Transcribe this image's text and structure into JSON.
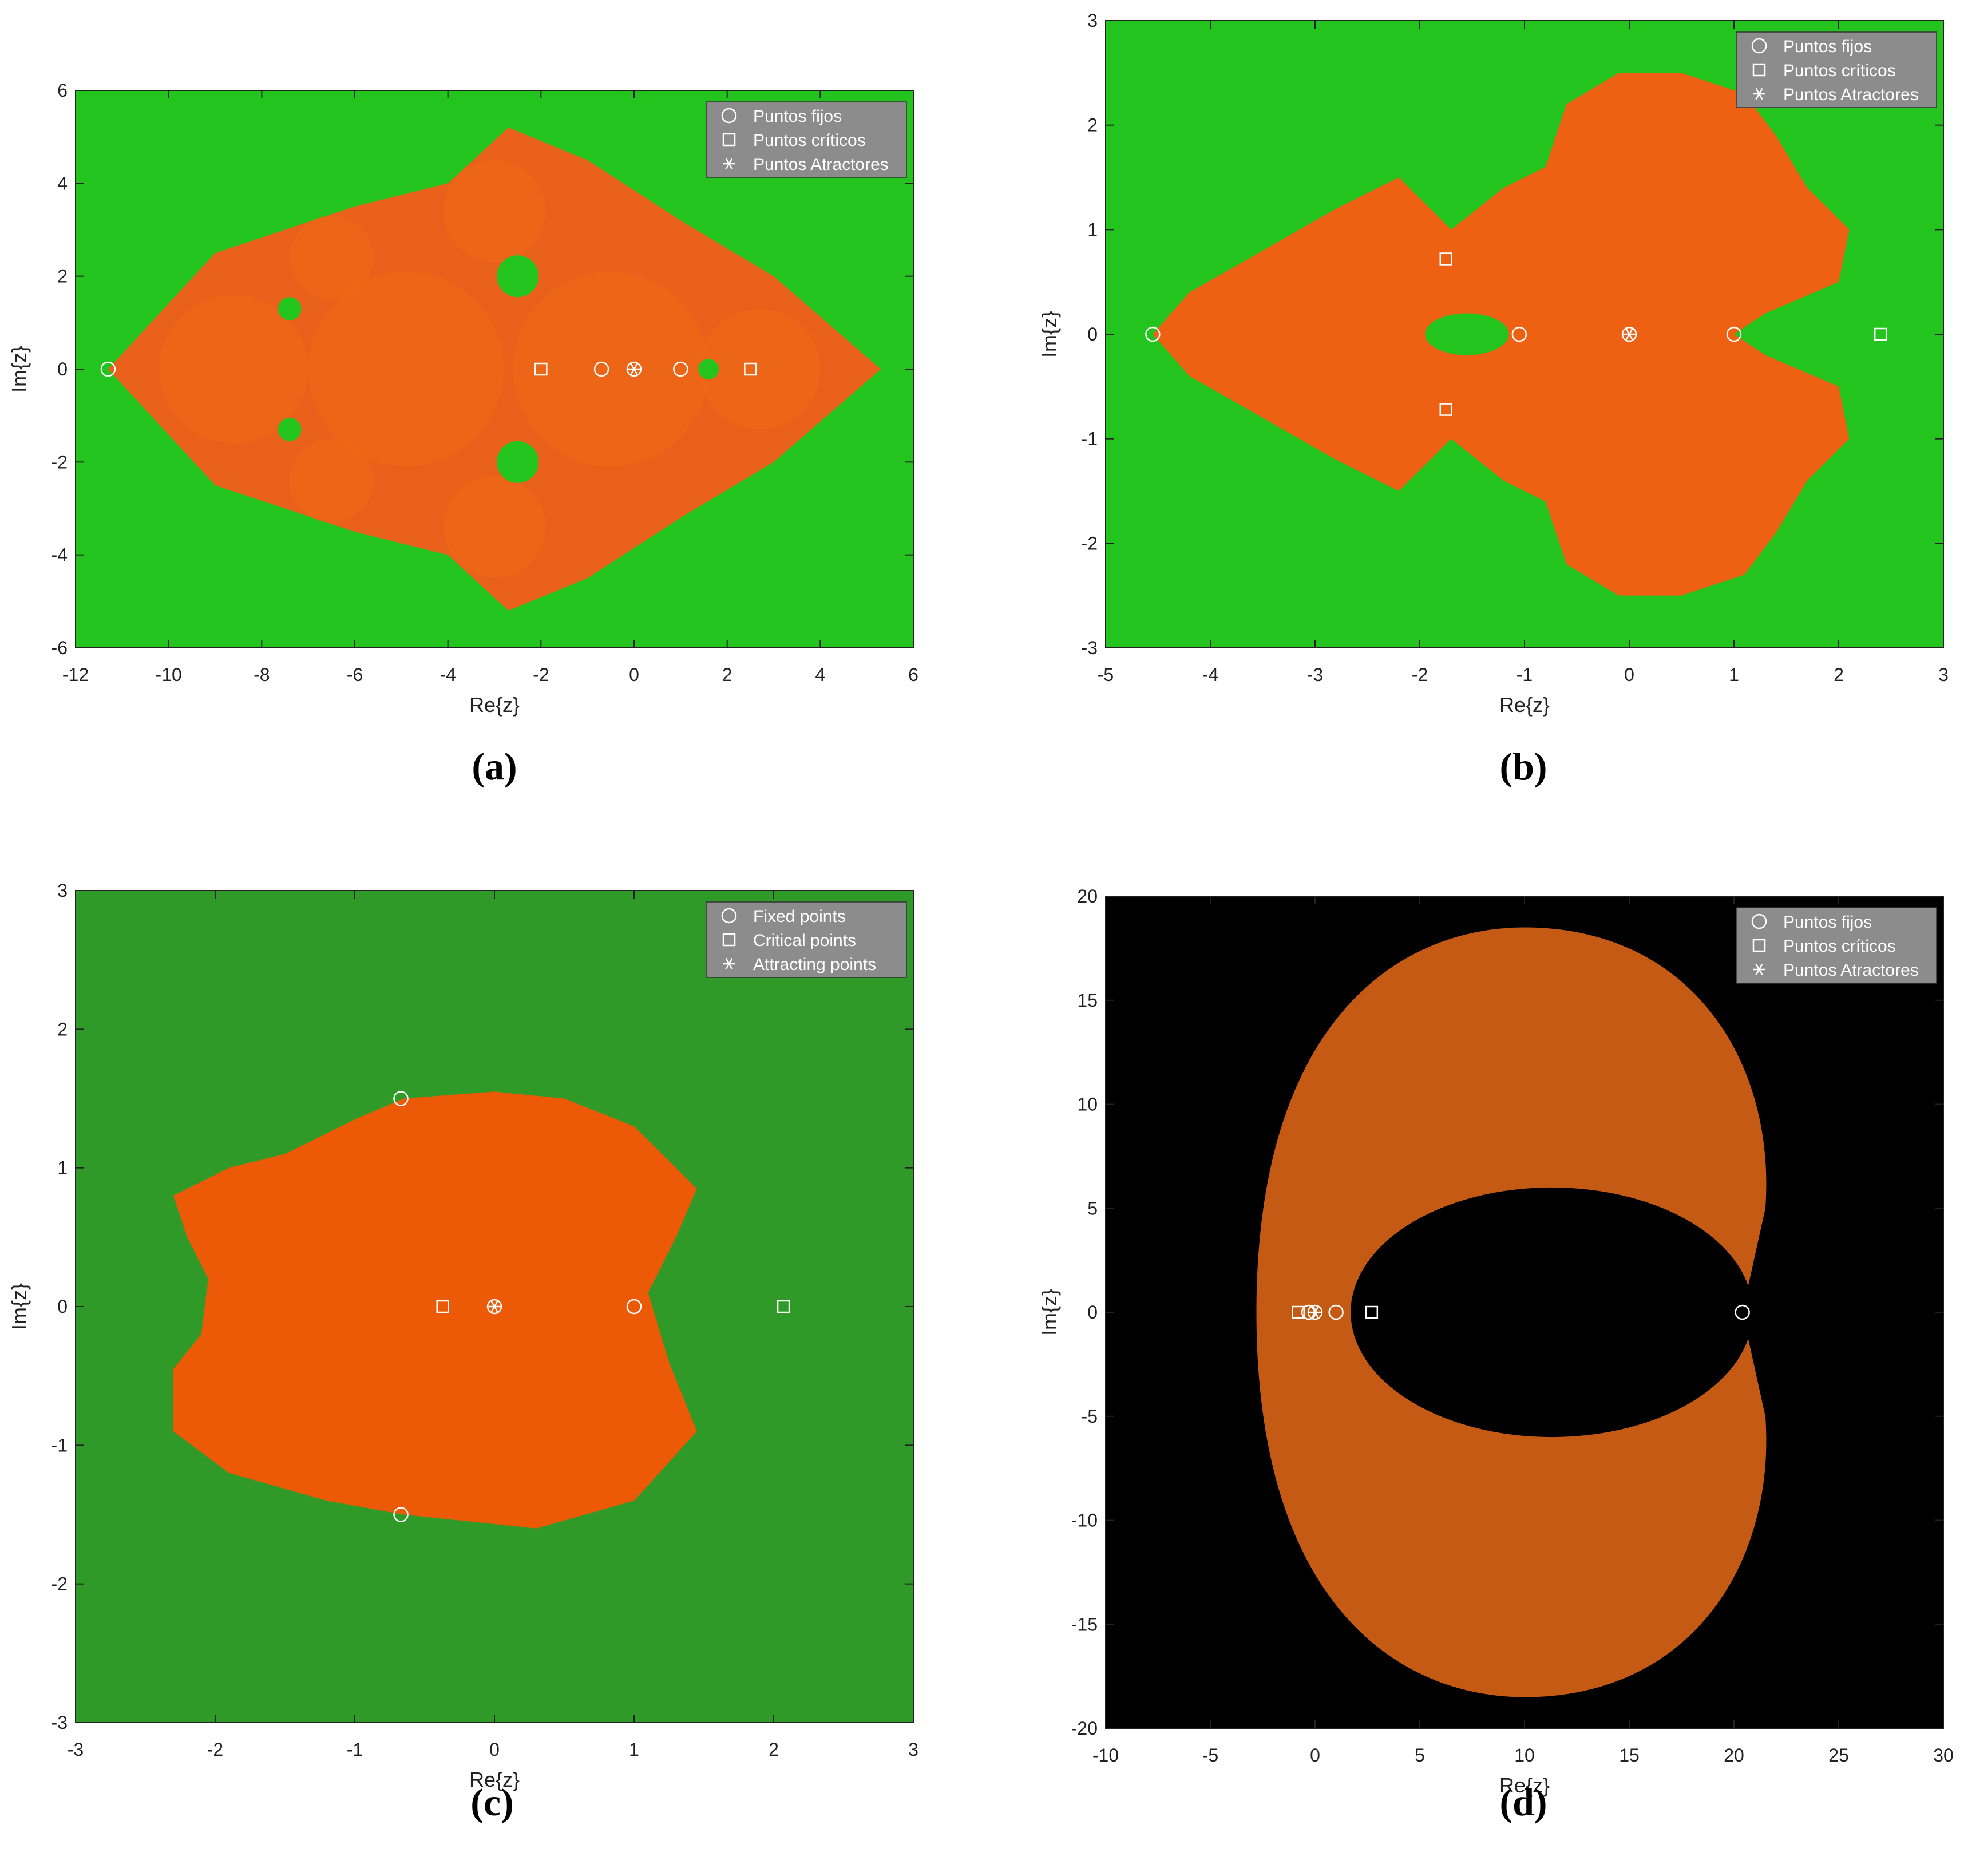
{
  "chart_data": [
    {
      "type": "scatter",
      "panel_label": "(a)",
      "xlabel": "Re{z}",
      "ylabel": "Im{z}",
      "xlim": [
        -12,
        6
      ],
      "ylim": [
        -6,
        6
      ],
      "xticks": [
        -12,
        -10,
        -8,
        -6,
        -4,
        -2,
        0,
        2,
        4,
        6
      ],
      "yticks": [
        -6,
        -4,
        -2,
        0,
        2,
        4,
        6
      ],
      "background": "#23c41e",
      "basin_color": "#e8601a",
      "basin_shape": "fractal-rhombus",
      "legend_position": "top-right",
      "legend": [
        "Puntos fijos",
        "Puntos críticos",
        "Puntos Atractores"
      ],
      "series": [
        {
          "name": "Puntos fijos",
          "marker": "circle",
          "points": [
            [
              -11.3,
              0
            ],
            [
              -0.7,
              0
            ],
            [
              0,
              0
            ],
            [
              1,
              0
            ]
          ]
        },
        {
          "name": "Puntos críticos",
          "marker": "square",
          "points": [
            [
              -2,
              0
            ],
            [
              2.5,
              0
            ]
          ]
        },
        {
          "name": "Puntos Atractores",
          "marker": "asterisk",
          "points": [
            [
              0,
              0
            ]
          ]
        }
      ]
    },
    {
      "type": "scatter",
      "panel_label": "(b)",
      "xlabel": "Re{z}",
      "ylabel": "Im{z}",
      "xlim": [
        -5,
        3
      ],
      "ylim": [
        -3,
        3
      ],
      "xticks": [
        -5,
        -4,
        -3,
        -2,
        -1,
        0,
        1,
        2,
        3
      ],
      "yticks": [
        -3,
        -2,
        -1,
        0,
        1,
        2,
        3
      ],
      "background": "#23c41e",
      "basin_color": "#ee6012",
      "basin_shape": "double-lobed",
      "legend_position": "top-right",
      "legend": [
        "Puntos fijos",
        "Puntos críticos",
        "Puntos Atractores"
      ],
      "series": [
        {
          "name": "Puntos fijos",
          "marker": "circle",
          "points": [
            [
              -4.55,
              0
            ],
            [
              -1.05,
              0
            ],
            [
              0,
              0
            ],
            [
              1,
              0
            ]
          ]
        },
        {
          "name": "Puntos críticos",
          "marker": "square",
          "points": [
            [
              -1.75,
              0.72
            ],
            [
              -1.75,
              -0.72
            ],
            [
              2.4,
              0
            ]
          ]
        },
        {
          "name": "Puntos Atractores",
          "marker": "asterisk",
          "points": [
            [
              0,
              0
            ]
          ]
        }
      ]
    },
    {
      "type": "scatter",
      "panel_label": "(c)",
      "xlabel": "Re{z}",
      "ylabel": "Im{z}",
      "xlim": [
        -3,
        3
      ],
      "ylim": [
        -3,
        3
      ],
      "xticks": [
        -3,
        -2,
        -1,
        0,
        1,
        2,
        3
      ],
      "yticks": [
        -3,
        -2,
        -1,
        0,
        1,
        2,
        3
      ],
      "background": "#2f9a28",
      "basin_color": "#ec5a08",
      "basin_shape": "rounded-square",
      "legend_position": "top-right",
      "legend": [
        "Fixed points",
        "Critical points",
        "Attracting points"
      ],
      "series": [
        {
          "name": "Fixed points",
          "marker": "circle",
          "points": [
            [
              -0.67,
              1.5
            ],
            [
              -0.67,
              -1.5
            ],
            [
              0,
              0
            ],
            [
              1,
              0
            ]
          ]
        },
        {
          "name": "Critical points",
          "marker": "square",
          "points": [
            [
              -0.37,
              0
            ],
            [
              2.07,
              0
            ]
          ]
        },
        {
          "name": "Attracting points",
          "marker": "asterisk",
          "points": [
            [
              0,
              0
            ]
          ]
        }
      ]
    },
    {
      "type": "scatter",
      "panel_label": "(d)",
      "xlabel": "Re{z}",
      "ylabel": "Im{z}",
      "xlim": [
        -10,
        30
      ],
      "ylim": [
        -20,
        20
      ],
      "xticks": [
        -10,
        -5,
        0,
        5,
        10,
        15,
        20,
        25,
        30
      ],
      "yticks": [
        -20,
        -15,
        -10,
        -5,
        0,
        5,
        10,
        15,
        20
      ],
      "background": "#000000",
      "basin_color": "#c45a14",
      "basin_shape": "crescent",
      "legend_position": "top-right",
      "legend": [
        "Puntos fijos",
        "Puntos críticos",
        "Puntos Atractores"
      ],
      "series": [
        {
          "name": "Puntos fijos",
          "marker": "circle",
          "points": [
            [
              -0.3,
              0
            ],
            [
              0,
              0
            ],
            [
              1,
              0
            ],
            [
              20.4,
              0
            ]
          ]
        },
        {
          "name": "Puntos críticos",
          "marker": "square",
          "points": [
            [
              -0.8,
              0
            ],
            [
              2.7,
              0
            ]
          ]
        },
        {
          "name": "Puntos Atractores",
          "marker": "asterisk",
          "points": [
            [
              0,
              0
            ]
          ]
        }
      ]
    }
  ]
}
